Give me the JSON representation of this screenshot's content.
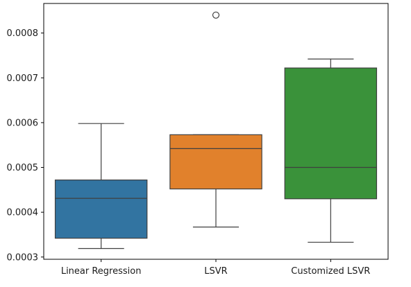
{
  "chart_data": {
    "type": "box",
    "title": "",
    "xlabel": "",
    "ylabel": "",
    "categories": [
      "Linear Regression",
      "LSVR",
      "Customized LSVR"
    ],
    "ylim": [
      0.000295,
      0.000866
    ],
    "yticks": [
      0.0003,
      0.0004,
      0.0005,
      0.0006,
      0.0007,
      0.0008
    ],
    "ytick_labels": [
      "0.0003",
      "0.0004",
      "0.0005",
      "0.0006",
      "0.0007",
      "0.0008"
    ],
    "grid": false,
    "legend": "none",
    "boxes": [
      {
        "label": "Linear Regression",
        "whisker_low": 0.000319,
        "q1": 0.000342,
        "median": 0.000431,
        "q3": 0.000472,
        "whisker_high": 0.000598,
        "outliers": [],
        "color": "#3274a1"
      },
      {
        "label": "LSVR",
        "whisker_low": 0.000367,
        "q1": 0.000452,
        "median": 0.000542,
        "q3": 0.000573,
        "whisker_high": 0.000573,
        "outliers": [
          0.00084
        ],
        "color": "#e1812c"
      },
      {
        "label": "Customized LSVR",
        "whisker_low": 0.000333,
        "q1": 0.00043,
        "median": 0.0005,
        "q3": 0.000722,
        "whisker_high": 0.000742,
        "outliers": [],
        "color": "#3a923a"
      }
    ]
  }
}
